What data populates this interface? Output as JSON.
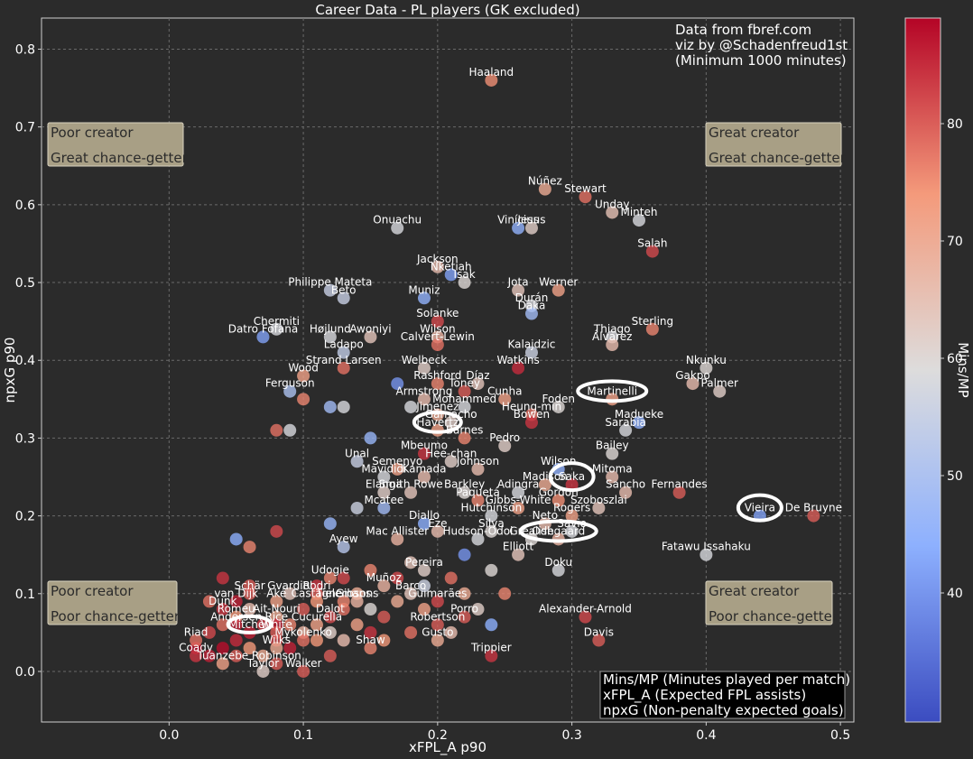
{
  "chart_data": {
    "type": "scatter",
    "title": "Career Data - PL players (GK excluded)",
    "xlabel": "xFPL_A p90",
    "ylabel": "npxG p90",
    "xlim": [
      -0.095,
      0.51
    ],
    "ylim": [
      -0.065,
      0.84
    ],
    "xticks": [
      "0.0",
      "0.1",
      "0.2",
      "0.3",
      "0.4",
      "0.5"
    ],
    "xtick_values": [
      0,
      0.1,
      0.2,
      0.3,
      0.4,
      0.5
    ],
    "yticks": [
      "0.0",
      "0.1",
      "0.2",
      "0.3",
      "0.4",
      "0.5",
      "0.6",
      "0.7",
      "0.8"
    ],
    "ytick_values": [
      0,
      0.1,
      0.2,
      0.3,
      0.4,
      0.5,
      0.6,
      0.7,
      0.8
    ],
    "grid": true,
    "colorbar": {
      "label": "Mins/MP",
      "min": 29,
      "max": 89,
      "ticks": [
        "40",
        "50",
        "60",
        "70",
        "80"
      ],
      "tick_values": [
        40,
        50,
        60,
        70,
        80
      ]
    },
    "credits": [
      "Data from fbref.com",
      "viz by @Schadenfreud1st",
      "(Minimum 1000 minutes)"
    ],
    "legend": [
      "Mins/MP (Minutes played per match)",
      "xFPL_A (Expected FPL assists)",
      "npxG (Non-penalty expected goals)"
    ],
    "quadrants": {
      "top_left": [
        "Poor creator",
        "Great chance-getter"
      ],
      "top_right": [
        "Great creator",
        "Great chance-getter"
      ],
      "bottom_left": [
        "Poor creator",
        "Poor chance-getter"
      ],
      "bottom_right": [
        "Great creator",
        "Poor chance-getter"
      ]
    },
    "highlighted": [
      "Havertz",
      "Martinelli",
      "Saka",
      "Odegaard",
      "Vieira",
      "Mitchell"
    ],
    "labels": [
      {
        "t": "Haaland",
        "x": 0.24,
        "y": 0.76,
        "c": 75
      },
      {
        "t": "Núñez",
        "x": 0.28,
        "y": 0.62,
        "c": 70
      },
      {
        "t": "Stewart",
        "x": 0.31,
        "y": 0.61,
        "c": 78
      },
      {
        "t": "Unday",
        "x": 0.33,
        "y": 0.59,
        "c": 65
      },
      {
        "t": "Minteh",
        "x": 0.35,
        "y": 0.58,
        "c": 58
      },
      {
        "t": "Vinícius",
        "x": 0.26,
        "y": 0.57,
        "c": 45
      },
      {
        "t": "Jesus",
        "x": 0.27,
        "y": 0.57,
        "c": 62
      },
      {
        "t": "Onuachu",
        "x": 0.17,
        "y": 0.57,
        "c": 58
      },
      {
        "t": "Salah",
        "x": 0.36,
        "y": 0.54,
        "c": 82
      },
      {
        "t": "Jackson",
        "x": 0.2,
        "y": 0.52,
        "c": 66
      },
      {
        "t": "Nketiah",
        "x": 0.21,
        "y": 0.51,
        "c": 42
      },
      {
        "t": "Isak",
        "x": 0.22,
        "y": 0.5,
        "c": 60
      },
      {
        "t": "Philippe Mateta",
        "x": 0.12,
        "y": 0.49,
        "c": 55
      },
      {
        "t": "Muniz",
        "x": 0.19,
        "y": 0.48,
        "c": 45
      },
      {
        "t": "Beto",
        "x": 0.13,
        "y": 0.48,
        "c": 55
      },
      {
        "t": "Jota",
        "x": 0.26,
        "y": 0.49,
        "c": 64
      },
      {
        "t": "Werner",
        "x": 0.29,
        "y": 0.49,
        "c": 72
      },
      {
        "t": "Durán",
        "x": 0.27,
        "y": 0.47,
        "c": 58
      },
      {
        "t": "Daka",
        "x": 0.27,
        "y": 0.46,
        "c": 48
      },
      {
        "t": "Solanke",
        "x": 0.2,
        "y": 0.45,
        "c": 82
      },
      {
        "t": "Chermiti",
        "x": 0.08,
        "y": 0.44,
        "c": 58
      },
      {
        "t": "Datro Fofana",
        "x": 0.07,
        "y": 0.43,
        "c": 42
      },
      {
        "t": "Højlund",
        "x": 0.12,
        "y": 0.43,
        "c": 58
      },
      {
        "t": "Awoniyi",
        "x": 0.15,
        "y": 0.43,
        "c": 64
      },
      {
        "t": "Wilson",
        "x": 0.2,
        "y": 0.43,
        "c": 68
      },
      {
        "t": "Thiago",
        "x": 0.33,
        "y": 0.43,
        "c": 58
      },
      {
        "t": "Sterling",
        "x": 0.36,
        "y": 0.44,
        "c": 76
      },
      {
        "t": "Calvert-Lewin",
        "x": 0.2,
        "y": 0.42,
        "c": 78
      },
      {
        "t": "Álvarez",
        "x": 0.33,
        "y": 0.42,
        "c": 66
      },
      {
        "t": "Ladapo",
        "x": 0.13,
        "y": 0.41,
        "c": 54
      },
      {
        "t": "Kalajdzic",
        "x": 0.27,
        "y": 0.41,
        "c": 56
      },
      {
        "t": "Welbeck",
        "x": 0.19,
        "y": 0.39,
        "c": 62
      },
      {
        "t": "Watkins",
        "x": 0.26,
        "y": 0.39,
        "c": 85
      },
      {
        "t": "Strand Larsen",
        "x": 0.13,
        "y": 0.39,
        "c": 78
      },
      {
        "t": "Nkunku",
        "x": 0.4,
        "y": 0.39,
        "c": 60
      },
      {
        "t": "Wood",
        "x": 0.1,
        "y": 0.38,
        "c": 72
      },
      {
        "t": "Rashford",
        "x": 0.2,
        "y": 0.37,
        "c": 76
      },
      {
        "t": "Díaz",
        "x": 0.23,
        "y": 0.37,
        "c": 64
      },
      {
        "t": "Gakpo",
        "x": 0.39,
        "y": 0.37,
        "c": 66
      },
      {
        "t": "Ferguson",
        "x": 0.09,
        "y": 0.36,
        "c": 50
      },
      {
        "t": "Armstrong",
        "x": 0.19,
        "y": 0.35,
        "c": 66
      },
      {
        "t": "Toney",
        "x": 0.22,
        "y": 0.36,
        "c": 80
      },
      {
        "t": "Cunha",
        "x": 0.25,
        "y": 0.35,
        "c": 72
      },
      {
        "t": "Palmer",
        "x": 0.41,
        "y": 0.36,
        "c": 62
      },
      {
        "t": "Foden",
        "x": 0.29,
        "y": 0.34,
        "c": 60
      },
      {
        "t": "Mohammed",
        "x": 0.22,
        "y": 0.34,
        "c": 58
      },
      {
        "t": "Martinelli",
        "x": 0.33,
        "y": 0.35,
        "c": 72
      },
      {
        "t": "Heung-min",
        "x": 0.27,
        "y": 0.33,
        "c": 78
      },
      {
        "t": "Jimenez",
        "x": 0.2,
        "y": 0.33,
        "c": 70
      },
      {
        "t": "Madueke",
        "x": 0.35,
        "y": 0.32,
        "c": 45
      },
      {
        "t": "Bowen",
        "x": 0.27,
        "y": 0.32,
        "c": 84
      },
      {
        "t": "Garnacho",
        "x": 0.21,
        "y": 0.32,
        "c": 62
      },
      {
        "t": "Havertz",
        "x": 0.2,
        "y": 0.31,
        "c": 72
      },
      {
        "t": "Sarabia",
        "x": 0.34,
        "y": 0.31,
        "c": 58
      },
      {
        "t": "Barnes",
        "x": 0.22,
        "y": 0.3,
        "c": 76
      },
      {
        "t": "Pedro",
        "x": 0.25,
        "y": 0.29,
        "c": 62
      },
      {
        "t": "Bailey",
        "x": 0.33,
        "y": 0.28,
        "c": 60
      },
      {
        "t": "Mbeumo",
        "x": 0.19,
        "y": 0.28,
        "c": 84
      },
      {
        "t": "Unal",
        "x": 0.14,
        "y": 0.27,
        "c": 55
      },
      {
        "t": "Hee-chan",
        "x": 0.21,
        "y": 0.27,
        "c": 62
      },
      {
        "t": "Semenyo",
        "x": 0.17,
        "y": 0.26,
        "c": 72
      },
      {
        "t": "Johnson",
        "x": 0.23,
        "y": 0.26,
        "c": 66
      },
      {
        "t": "Wilson",
        "x": 0.29,
        "y": 0.26,
        "c": 45
      },
      {
        "t": "Mitoma",
        "x": 0.33,
        "y": 0.25,
        "c": 66
      },
      {
        "t": "Kamada",
        "x": 0.19,
        "y": 0.25,
        "c": 66
      },
      {
        "t": "Mavididi",
        "x": 0.16,
        "y": 0.25,
        "c": 58
      },
      {
        "t": "Saka",
        "x": 0.3,
        "y": 0.24,
        "c": 84
      },
      {
        "t": "Madison",
        "x": 0.28,
        "y": 0.24,
        "c": 70
      },
      {
        "t": "Sancho",
        "x": 0.34,
        "y": 0.23,
        "c": 66
      },
      {
        "t": "Fernandes",
        "x": 0.38,
        "y": 0.23,
        "c": 80
      },
      {
        "t": "Elanga",
        "x": 0.16,
        "y": 0.23,
        "c": 62
      },
      {
        "t": "Smith Rowe",
        "x": 0.18,
        "y": 0.23,
        "c": 64
      },
      {
        "t": "Barkley",
        "x": 0.22,
        "y": 0.23,
        "c": 60
      },
      {
        "t": "Paquetá",
        "x": 0.23,
        "y": 0.22,
        "c": 76
      },
      {
        "t": "Adingra",
        "x": 0.26,
        "y": 0.23,
        "c": 58
      },
      {
        "t": "Gordon",
        "x": 0.29,
        "y": 0.22,
        "c": 75
      },
      {
        "t": "Mcatee",
        "x": 0.16,
        "y": 0.21,
        "c": 48
      },
      {
        "t": "Gibbs-White",
        "x": 0.26,
        "y": 0.21,
        "c": 72
      },
      {
        "t": "Szoboszlai",
        "x": 0.32,
        "y": 0.21,
        "c": 64
      },
      {
        "t": "Hutchinson",
        "x": 0.24,
        "y": 0.2,
        "c": 58
      },
      {
        "t": "Rogers",
        "x": 0.3,
        "y": 0.2,
        "c": 72
      },
      {
        "t": "Vieira",
        "x": 0.44,
        "y": 0.2,
        "c": 42
      },
      {
        "t": "De Bruyne",
        "x": 0.48,
        "y": 0.2,
        "c": 80
      },
      {
        "t": "Neto",
        "x": 0.28,
        "y": 0.19,
        "c": 66
      },
      {
        "t": "Diallo",
        "x": 0.19,
        "y": 0.19,
        "c": 44
      },
      {
        "t": "Silva",
        "x": 0.24,
        "y": 0.18,
        "c": 60
      },
      {
        "t": "Savio",
        "x": 0.3,
        "y": 0.18,
        "c": 58
      },
      {
        "t": "Grealish",
        "x": 0.27,
        "y": 0.17,
        "c": 60
      },
      {
        "t": "Eze",
        "x": 0.2,
        "y": 0.18,
        "c": 66
      },
      {
        "t": "Mac Allister",
        "x": 0.17,
        "y": 0.17,
        "c": 68
      },
      {
        "t": "Hudson-Odoi",
        "x": 0.23,
        "y": 0.17,
        "c": 58
      },
      {
        "t": "Odegaard",
        "x": 0.29,
        "y": 0.17,
        "c": 68
      },
      {
        "t": "Ayew",
        "x": 0.13,
        "y": 0.16,
        "c": 52
      },
      {
        "t": "Elliott",
        "x": 0.26,
        "y": 0.15,
        "c": 64
      },
      {
        "t": "Fatawu Issahaku",
        "x": 0.4,
        "y": 0.15,
        "c": 58
      },
      {
        "t": "Pereira",
        "x": 0.19,
        "y": 0.13,
        "c": 62
      },
      {
        "t": "Doku",
        "x": 0.29,
        "y": 0.13,
        "c": 58
      },
      {
        "t": "Udogie",
        "x": 0.12,
        "y": 0.12,
        "c": 76
      },
      {
        "t": "Muñoz",
        "x": 0.16,
        "y": 0.11,
        "c": 68
      },
      {
        "t": "Barco",
        "x": 0.18,
        "y": 0.1,
        "c": 64
      },
      {
        "t": "Schär",
        "x": 0.06,
        "y": 0.1,
        "c": 80
      },
      {
        "t": "Gvardiol",
        "x": 0.09,
        "y": 0.1,
        "c": 64
      },
      {
        "t": "Rodri",
        "x": 0.11,
        "y": 0.1,
        "c": 80
      },
      {
        "t": "Guimarães",
        "x": 0.2,
        "y": 0.09,
        "c": 82
      },
      {
        "t": "van Dijk",
        "x": 0.05,
        "y": 0.09,
        "c": 86
      },
      {
        "t": "Aké",
        "x": 0.08,
        "y": 0.09,
        "c": 72
      },
      {
        "t": "Castagne",
        "x": 0.11,
        "y": 0.09,
        "c": 74
      },
      {
        "t": "Tielemans",
        "x": 0.13,
        "y": 0.09,
        "c": 76
      },
      {
        "t": "Gibsons",
        "x": 0.14,
        "y": 0.09,
        "c": 68
      },
      {
        "t": "Dunk",
        "x": 0.04,
        "y": 0.08,
        "c": 84
      },
      {
        "t": "Ait-Nouri",
        "x": 0.08,
        "y": 0.07,
        "c": 70
      },
      {
        "t": "Romeu",
        "x": 0.05,
        "y": 0.07,
        "c": 74
      },
      {
        "t": "Dalot",
        "x": 0.12,
        "y": 0.07,
        "c": 82
      },
      {
        "t": "Porro",
        "x": 0.22,
        "y": 0.07,
        "c": 80
      },
      {
        "t": "Alexander-Arnold",
        "x": 0.31,
        "y": 0.07,
        "c": 82
      },
      {
        "t": "Andersen",
        "x": 0.05,
        "y": 0.06,
        "c": 86
      },
      {
        "t": "Rice",
        "x": 0.08,
        "y": 0.06,
        "c": 86
      },
      {
        "t": "Cucurella",
        "x": 0.11,
        "y": 0.06,
        "c": 72
      },
      {
        "t": "Robertson",
        "x": 0.2,
        "y": 0.06,
        "c": 80
      },
      {
        "t": "Mitchell",
        "x": 0.06,
        "y": 0.05,
        "c": 86
      },
      {
        "t": "White",
        "x": 0.08,
        "y": 0.05,
        "c": 80
      },
      {
        "t": "Mykolenko",
        "x": 0.1,
        "y": 0.04,
        "c": 78
      },
      {
        "t": "Riad",
        "x": 0.02,
        "y": 0.04,
        "c": 78
      },
      {
        "t": "Gusto",
        "x": 0.2,
        "y": 0.04,
        "c": 70
      },
      {
        "t": "Davis",
        "x": 0.32,
        "y": 0.04,
        "c": 80
      },
      {
        "t": "Wilks",
        "x": 0.08,
        "y": 0.03,
        "c": 70
      },
      {
        "t": "Shaw",
        "x": 0.15,
        "y": 0.03,
        "c": 76
      },
      {
        "t": "Trippier",
        "x": 0.24,
        "y": 0.02,
        "c": 84
      },
      {
        "t": "Coady",
        "x": 0.02,
        "y": 0.02,
        "c": 84
      },
      {
        "t": "Robinson",
        "x": 0.08,
        "y": 0.01,
        "c": 80
      },
      {
        "t": "Tuanzebe",
        "x": 0.04,
        "y": 0.01,
        "c": 72
      },
      {
        "t": "Taylor",
        "x": 0.07,
        "y": 0.0,
        "c": 62
      },
      {
        "t": "Walker",
        "x": 0.1,
        "y": 0.0,
        "c": 80
      }
    ],
    "extra_points": [
      {
        "x": 0.02,
        "y": 0.03,
        "c": 88
      },
      {
        "x": 0.03,
        "y": 0.02,
        "c": 86
      },
      {
        "x": 0.03,
        "y": 0.05,
        "c": 82
      },
      {
        "x": 0.04,
        "y": 0.03,
        "c": 88
      },
      {
        "x": 0.04,
        "y": 0.06,
        "c": 78
      },
      {
        "x": 0.05,
        "y": 0.04,
        "c": 85
      },
      {
        "x": 0.05,
        "y": 0.02,
        "c": 80
      },
      {
        "x": 0.06,
        "y": 0.03,
        "c": 74
      },
      {
        "x": 0.06,
        "y": 0.08,
        "c": 66
      },
      {
        "x": 0.07,
        "y": 0.06,
        "c": 84
      },
      {
        "x": 0.07,
        "y": 0.02,
        "c": 70
      },
      {
        "x": 0.08,
        "y": 0.04,
        "c": 82
      },
      {
        "x": 0.09,
        "y": 0.06,
        "c": 76
      },
      {
        "x": 0.09,
        "y": 0.03,
        "c": 86
      },
      {
        "x": 0.1,
        "y": 0.05,
        "c": 68
      },
      {
        "x": 0.1,
        "y": 0.08,
        "c": 80
      },
      {
        "x": 0.11,
        "y": 0.04,
        "c": 74
      },
      {
        "x": 0.11,
        "y": 0.11,
        "c": 84
      },
      {
        "x": 0.12,
        "y": 0.05,
        "c": 62
      },
      {
        "x": 0.12,
        "y": 0.02,
        "c": 80
      },
      {
        "x": 0.13,
        "y": 0.08,
        "c": 78
      },
      {
        "x": 0.13,
        "y": 0.04,
        "c": 66
      },
      {
        "x": 0.13,
        "y": 0.12,
        "c": 82
      },
      {
        "x": 0.14,
        "y": 0.06,
        "c": 72
      },
      {
        "x": 0.14,
        "y": 0.1,
        "c": 70
      },
      {
        "x": 0.15,
        "y": 0.05,
        "c": 84
      },
      {
        "x": 0.15,
        "y": 0.13,
        "c": 76
      },
      {
        "x": 0.15,
        "y": 0.08,
        "c": 60
      },
      {
        "x": 0.16,
        "y": 0.07,
        "c": 80
      },
      {
        "x": 0.16,
        "y": 0.04,
        "c": 74
      },
      {
        "x": 0.17,
        "y": 0.09,
        "c": 70
      },
      {
        "x": 0.17,
        "y": 0.12,
        "c": 82
      },
      {
        "x": 0.18,
        "y": 0.05,
        "c": 78
      },
      {
        "x": 0.18,
        "y": 0.14,
        "c": 64
      },
      {
        "x": 0.19,
        "y": 0.08,
        "c": 72
      },
      {
        "x": 0.19,
        "y": 0.11,
        "c": 56
      },
      {
        "x": 0.21,
        "y": 0.05,
        "c": 66
      },
      {
        "x": 0.21,
        "y": 0.12,
        "c": 78
      },
      {
        "x": 0.22,
        "y": 0.15,
        "c": 40
      },
      {
        "x": 0.22,
        "y": 0.1,
        "c": 70
      },
      {
        "x": 0.23,
        "y": 0.08,
        "c": 62
      },
      {
        "x": 0.24,
        "y": 0.13,
        "c": 60
      },
      {
        "x": 0.24,
        "y": 0.06,
        "c": 44
      },
      {
        "x": 0.25,
        "y": 0.1,
        "c": 76
      },
      {
        "x": 0.12,
        "y": 0.34,
        "c": 48
      },
      {
        "x": 0.09,
        "y": 0.31,
        "c": 58
      },
      {
        "x": 0.08,
        "y": 0.31,
        "c": 78
      },
      {
        "x": 0.12,
        "y": 0.19,
        "c": 46
      },
      {
        "x": 0.08,
        "y": 0.18,
        "c": 82
      },
      {
        "x": 0.05,
        "y": 0.17,
        "c": 44
      },
      {
        "x": 0.06,
        "y": 0.16,
        "c": 76
      },
      {
        "x": 0.04,
        "y": 0.12,
        "c": 84
      },
      {
        "x": 0.06,
        "y": 0.11,
        "c": 80
      },
      {
        "x": 0.03,
        "y": 0.09,
        "c": 78
      },
      {
        "x": 0.14,
        "y": 0.21,
        "c": 56
      },
      {
        "x": 0.15,
        "y": 0.3,
        "c": 46
      },
      {
        "x": 0.17,
        "y": 0.37,
        "c": 40
      },
      {
        "x": 0.18,
        "y": 0.34,
        "c": 58
      },
      {
        "x": 0.13,
        "y": 0.34,
        "c": 58
      },
      {
        "x": 0.1,
        "y": 0.35,
        "c": 76
      }
    ]
  }
}
